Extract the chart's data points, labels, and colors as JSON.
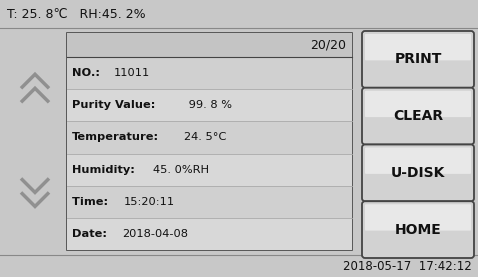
{
  "bg_color": "#c8c8c8",
  "header_text": "T: 25. 8℃   RH:45. 2%",
  "footer_text": "2018-05-17  17:42:12",
  "record_counter": "20/20",
  "data_fields": [
    {
      "label": "NO.: ",
      "value": "11011"
    },
    {
      "label": "Purity Value: ",
      "value": " 99. 8 %"
    },
    {
      "label": "Temperature:",
      "value": "24. 5°C"
    },
    {
      "label": "Humidity:",
      "value": "45. 0%RH"
    },
    {
      "label": "Time: ",
      "value": "15:20:11"
    },
    {
      "label": "Date: ",
      "value": "2018-04-08"
    }
  ],
  "buttons": [
    "PRINT",
    "CLEAR",
    "U-DISK",
    "HOME"
  ],
  "panel_bg": "#c8c8c8",
  "box_bg": "#d8d8d8",
  "box_header_bg": "#c4c4c4",
  "button_bg_top": "#e0e0e0",
  "button_bg_bot": "#b0b0b0",
  "button_text_color": "#111111",
  "text_color": "#111111",
  "header_color": "#111111",
  "arrow_color": "#909090",
  "border_color": "#444444",
  "separator_color": "#aaaaaa",
  "row_colors": [
    "#d0d0d0",
    "#d8d8d8",
    "#d0d0d0",
    "#d8d8d8",
    "#d0d0d0",
    "#d8d8d8"
  ]
}
